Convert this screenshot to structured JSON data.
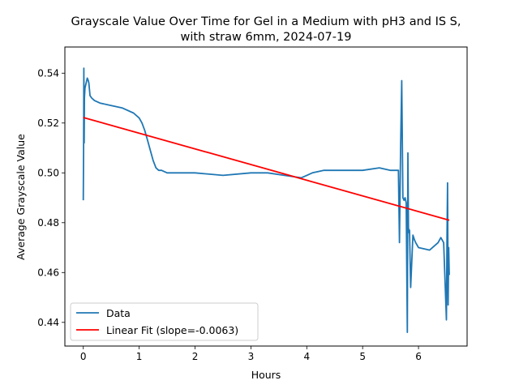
{
  "chart_data": {
    "type": "line",
    "title_line1": "Grayscale Value Over Time for Gel in a Medium with pH3 and IS S,",
    "title_line2": "with straw 6mm, 2024-07-19",
    "xlabel": "Hours",
    "ylabel": "Average Grayscale Value",
    "xlim": [
      -0.33,
      6.87
    ],
    "ylim": [
      0.4305,
      0.5505
    ],
    "xticks": [
      0,
      1,
      2,
      3,
      4,
      5,
      6
    ],
    "xtick_labels": [
      "0",
      "1",
      "2",
      "3",
      "4",
      "5",
      "6"
    ],
    "yticks": [
      0.44,
      0.46,
      0.48,
      0.5,
      0.52,
      0.54
    ],
    "ytick_labels": [
      "0.44",
      "0.46",
      "0.48",
      "0.50",
      "0.52",
      "0.54"
    ],
    "grid": false,
    "legend_position": "lower-left",
    "series": [
      {
        "name": "Data",
        "color": "#1f77b4",
        "x": [
          0,
          0.005,
          0.01,
          0.015,
          0.02,
          0.03,
          0.05,
          0.07,
          0.09,
          0.1,
          0.12,
          0.15,
          0.2,
          0.3,
          0.5,
          0.7,
          0.9,
          1.0,
          1.05,
          1.1,
          1.15,
          1.2,
          1.25,
          1.3,
          1.35,
          1.4,
          1.5,
          1.7,
          2.0,
          2.5,
          3.0,
          3.3,
          3.6,
          3.9,
          4.0,
          4.1,
          4.3,
          4.6,
          5.0,
          5.3,
          5.5,
          5.6,
          5.64,
          5.66,
          5.68,
          5.7,
          5.72,
          5.74,
          5.76,
          5.78,
          5.8,
          5.81,
          5.82,
          5.83,
          5.84,
          5.86,
          5.9,
          5.93,
          5.95,
          6.0,
          6.2,
          6.35,
          6.4,
          6.45,
          6.5,
          6.51,
          6.52,
          6.53,
          6.54,
          6.55
        ],
        "y": [
          0.489,
          0.511,
          0.542,
          0.512,
          0.53,
          0.534,
          0.536,
          0.538,
          0.537,
          0.536,
          0.531,
          0.53,
          0.529,
          0.528,
          0.527,
          0.526,
          0.524,
          0.522,
          0.52,
          0.517,
          0.513,
          0.509,
          0.505,
          0.502,
          0.501,
          0.501,
          0.5,
          0.5,
          0.5,
          0.499,
          0.5,
          0.5,
          0.499,
          0.498,
          0.499,
          0.5,
          0.501,
          0.501,
          0.501,
          0.502,
          0.501,
          0.501,
          0.501,
          0.472,
          0.51,
          0.537,
          0.49,
          0.489,
          0.49,
          0.488,
          0.436,
          0.508,
          0.478,
          0.476,
          0.477,
          0.454,
          0.475,
          0.473,
          0.472,
          0.47,
          0.469,
          0.472,
          0.474,
          0.472,
          0.441,
          0.474,
          0.496,
          0.447,
          0.47,
          0.459
        ]
      },
      {
        "name": "Linear Fit (slope=-0.0063)",
        "color": "#ff0000",
        "x": [
          0,
          6.55
        ],
        "y": [
          0.5222,
          0.481
        ]
      }
    ]
  }
}
